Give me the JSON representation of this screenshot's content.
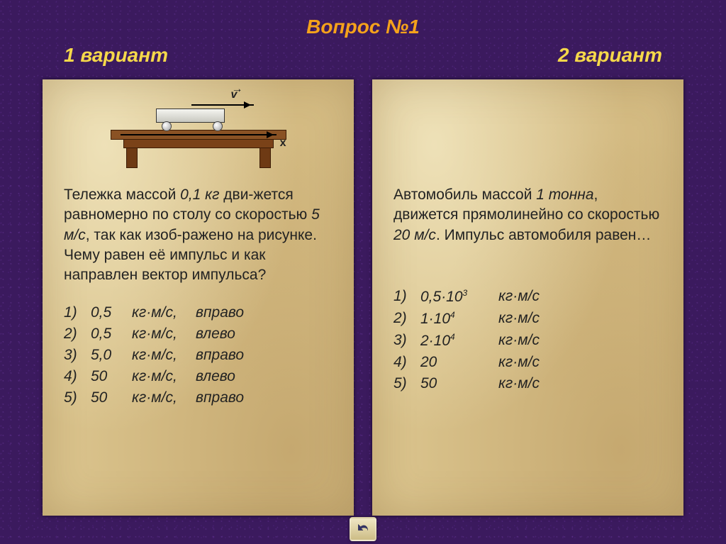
{
  "colors": {
    "title": "#f5a21b",
    "variant1": "#f5d84a",
    "variant2": "#f5d84a",
    "panel_bg": "#d9c28b",
    "body_bg": "#3b1a5e",
    "text": "#222222"
  },
  "typography": {
    "title_fontsize": 28,
    "body_fontsize": 21,
    "italic": true
  },
  "header": {
    "title": "Вопрос №1",
    "variant1": "1 вариант",
    "variant2": "2 вариант"
  },
  "diagram": {
    "v_label": "v",
    "x_label": "x",
    "table_color": "#7a4218",
    "cart_color": "#e8e8e0"
  },
  "left": {
    "question_html": "Тележка массой <em>0,1 кг</em> дви-жется равномерно по столу со скоростью <em>5 м/с</em>, так как изоб-ражено на рисунке. Чему равен её импульс и как направлен вектор импульса?",
    "answers": [
      {
        "n": "1)",
        "val": "0,5",
        "unit": "кг·м/с,",
        "dir": "вправо"
      },
      {
        "n": "2)",
        "val": "0,5",
        "unit": "кг·м/с,",
        "dir": "влево"
      },
      {
        "n": "3)",
        "val": "5,0",
        "unit": "кг·м/с,",
        "dir": "вправо"
      },
      {
        "n": "4)",
        "val": "50",
        "unit": "кг·м/с,",
        "dir": "влево"
      },
      {
        "n": "5)",
        "val": "50",
        "unit": "кг·м/с,",
        "dir": "вправо"
      }
    ]
  },
  "right": {
    "question_html": "Автомобиль массой <em>1 тонна</em>, движется прямолинейно со скоростью <em>20 м/с</em>. Импульс автомобиля равен…",
    "answers": [
      {
        "n": "1)",
        "val_html": "0,5·10<sup>3</sup>",
        "unit": "кг·м/с"
      },
      {
        "n": "2)",
        "val_html": "1·10<sup>4</sup>",
        "unit": "кг·м/с"
      },
      {
        "n": "3)",
        "val_html": "2·10<sup>4</sup>",
        "unit": "кг·м/с"
      },
      {
        "n": "4)",
        "val_html": "20",
        "unit": "кг·м/с"
      },
      {
        "n": "5)",
        "val_html": "50",
        "unit": "кг·м/с"
      }
    ]
  },
  "back_button": {
    "icon": "return-arrow"
  }
}
